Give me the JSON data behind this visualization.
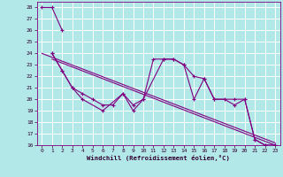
{
  "bg_color": "#b2e8e8",
  "grid_color": "#ffffff",
  "line_color": "#800080",
  "xlabel": "Windchill (Refroidissement éolien,°C)",
  "xlim": [
    -0.5,
    23.5
  ],
  "ylim": [
    16,
    28.5
  ],
  "xticks": [
    0,
    1,
    2,
    3,
    4,
    5,
    6,
    7,
    8,
    9,
    10,
    11,
    12,
    13,
    14,
    15,
    16,
    17,
    18,
    19,
    20,
    21,
    22,
    23
  ],
  "yticks": [
    16,
    17,
    18,
    19,
    20,
    21,
    22,
    23,
    24,
    25,
    26,
    27,
    28
  ],
  "series1_x": [
    0,
    1,
    2
  ],
  "series1_y": [
    28,
    28,
    26
  ],
  "series2_x": [
    1,
    2,
    3,
    4,
    6,
    8,
    9,
    10,
    12,
    13,
    14,
    15,
    16,
    17,
    19,
    20,
    21,
    22,
    23
  ],
  "series2_y": [
    24,
    22.5,
    21,
    20,
    19,
    20.5,
    19,
    20,
    23.5,
    23.5,
    23,
    22,
    21.8,
    20,
    20,
    20,
    16.5,
    16,
    16
  ],
  "series3_x": [
    1,
    2,
    3,
    4,
    5,
    6,
    7,
    8,
    9,
    10,
    11,
    12,
    13,
    14,
    15,
    16,
    17,
    18,
    19,
    20,
    21,
    22,
    23
  ],
  "series3_y": [
    24,
    22.5,
    21,
    20.5,
    20,
    19.5,
    19.5,
    20.5,
    19.5,
    20,
    23.5,
    23.5,
    23.5,
    23,
    20,
    21.8,
    20,
    20,
    19.5,
    20,
    16.5,
    16,
    16
  ],
  "line1_x": [
    0,
    23
  ],
  "line1_y": [
    24.0,
    16.2
  ],
  "line2_x": [
    1,
    23
  ],
  "line2_y": [
    23.5,
    16.0
  ]
}
